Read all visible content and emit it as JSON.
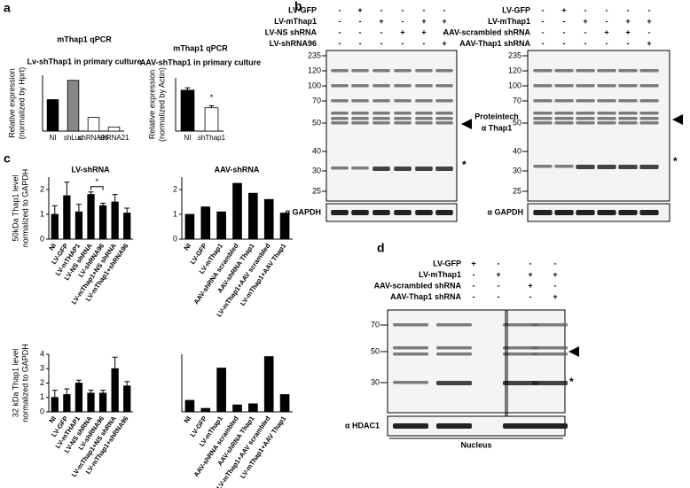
{
  "panel_labels": [
    "a",
    "b",
    "c",
    "d"
  ],
  "chart_data": [
    {
      "type": "bar",
      "title": "mThap1 qPCR",
      "subtitle": "Lv-shThap1 in primary culture",
      "y_label": [
        "Relative expression",
        "(normalized by Hprt)"
      ],
      "categories": [
        "NI",
        "shLuc",
        "shRNA96",
        "shRNA21"
      ],
      "values": [
        62,
        100,
        27,
        8
      ],
      "colors": [
        "#000000",
        "#888888",
        "#ffffff",
        "#ffffff"
      ],
      "ylim": [
        0,
        110
      ]
    },
    {
      "type": "bar",
      "title": "mThap1 qPCR",
      "subtitle": "AAV-shThap1 in primary culture",
      "y_label": [
        "Relative expression",
        "(normalized by Actin)"
      ],
      "categories": [
        "NI",
        "shThap1"
      ],
      "values": [
        100,
        57
      ],
      "errors": [
        6,
        5
      ],
      "colors": [
        "#000000",
        "#ffffff"
      ],
      "ylim": [
        0,
        130
      ],
      "annotation": "*"
    },
    {
      "type": "bar",
      "title": "LV-shRNA",
      "y_label": [
        "50kDa Thap1 level",
        "normalized to GAPDH"
      ],
      "categories": [
        "NI",
        "LV-GFP",
        "LV-mTHAP1",
        "LV-NS shRNA",
        "LV-shRNA96",
        "LV-mThap1+NS shRNA",
        "LV-mThap1+shRNA96"
      ],
      "values": [
        1.0,
        1.75,
        1.1,
        1.8,
        1.35,
        1.5,
        1.05
      ],
      "errors": [
        0.35,
        0.55,
        0.3,
        0.1,
        0.1,
        0.3,
        0.2
      ],
      "color": "#000000",
      "ylim": [
        0,
        2.5
      ],
      "yticks": [
        0,
        1,
        2
      ],
      "annotation": "*"
    },
    {
      "type": "bar",
      "title": "AAV-shRNA",
      "categories": [
        "NI",
        "LV-GFP",
        "LV-mThap1",
        "AAV-shRNA scrambled",
        "AAV-shRNA Thap1",
        "LV-mThap1+AAV scrambled",
        "LV-mThap1+AAV Thap1"
      ],
      "values": [
        1.0,
        1.3,
        1.1,
        2.25,
        1.85,
        1.6,
        1.05
      ],
      "color": "#000000",
      "ylim": [
        0,
        2.5
      ],
      "yticks": [
        0,
        1,
        2
      ]
    },
    {
      "type": "bar",
      "y_label": [
        "32 kDa Thap1 level",
        "normalized to GAPDH"
      ],
      "categories": [
        "NI",
        "LV-GFP",
        "LV-mTHAP1",
        "LV-NS shRNA",
        "LV-shRNA96",
        "LV-mThap1+NS shRNA",
        "LV-mThap1+shRNA96"
      ],
      "values": [
        1.0,
        1.2,
        2.0,
        1.3,
        1.3,
        3.0,
        1.8
      ],
      "errors": [
        0.5,
        0.4,
        0.2,
        0.2,
        0.2,
        0.8,
        0.3
      ],
      "color": "#000000",
      "ylim": [
        0,
        4
      ],
      "yticks": [
        0,
        1,
        2,
        3,
        4
      ]
    },
    {
      "type": "bar",
      "categories": [
        "NI",
        "LV-GFP",
        "LV-mThap1",
        "AAV-shRNA scrambled",
        "AAV-shRNA Thap1",
        "LV-mThap1+AAV scrambled",
        "LV-mThap1+AAV Thap1"
      ],
      "values": [
        1.0,
        0.3,
        3.8,
        0.6,
        0.7,
        4.8,
        1.5
      ],
      "color": "#000000",
      "ylim": [
        0,
        5
      ]
    }
  ],
  "blots": [
    {
      "rows": [
        {
          "label": "LV-GFP",
          "signs": [
            "-",
            "+",
            "-",
            "-",
            "-",
            "-"
          ]
        },
        {
          "label": "LV-mThap1",
          "signs": [
            "-",
            "-",
            "+",
            "-",
            "+",
            "+"
          ]
        },
        {
          "label": "LV-NS shRNA",
          "signs": [
            "-",
            "-",
            "-",
            "+",
            "+",
            "-"
          ]
        },
        {
          "label": "LV-shRNA96",
          "signs": [
            "-",
            "-",
            "-",
            "-",
            "-",
            "+"
          ]
        }
      ],
      "markers": [
        "235",
        "120",
        "100",
        "70",
        "50",
        "40",
        "30",
        "25"
      ],
      "loading_label": "α GAPDH",
      "star": "*"
    },
    {
      "rows": [
        {
          "label": "LV-GFP",
          "signs": [
            "-",
            "+",
            "-",
            "-",
            "-",
            "-"
          ]
        },
        {
          "label": "LV-mThap1",
          "signs": [
            "-",
            "-",
            "+",
            "-",
            "+",
            "+"
          ]
        },
        {
          "label": "AAV-scrambled shRNA",
          "signs": [
            "-",
            "-",
            "-",
            "+",
            "+",
            "-"
          ]
        },
        {
          "label": "AAV-Thap1 shRNA",
          "signs": [
            "-",
            "-",
            "-",
            "-",
            "-",
            "+"
          ]
        }
      ],
      "markers": [
        "235",
        "120",
        "100",
        "70",
        "50",
        "40",
        "30",
        "25"
      ],
      "antibody_label": [
        "Proteintech",
        "α Thap1"
      ],
      "loading_label": "α GAPDH",
      "star": "*"
    },
    {
      "rows": [
        {
          "label": "LV-GFP",
          "signs": [
            "+",
            "-",
            "-",
            "-"
          ]
        },
        {
          "label": "LV-mThap1",
          "signs": [
            "-",
            "+",
            "+",
            "+"
          ]
        },
        {
          "label": "AAV-scrambled shRNA",
          "signs": [
            "-",
            "-",
            "+",
            "-"
          ]
        },
        {
          "label": "AAV-Thap1 shRNA",
          "signs": [
            "-",
            "-",
            "-",
            "+"
          ]
        }
      ],
      "markers": [
        "70",
        "50",
        "30"
      ],
      "loading_label": "α HDAC1",
      "star": "*",
      "fraction": "Nucleus"
    }
  ]
}
